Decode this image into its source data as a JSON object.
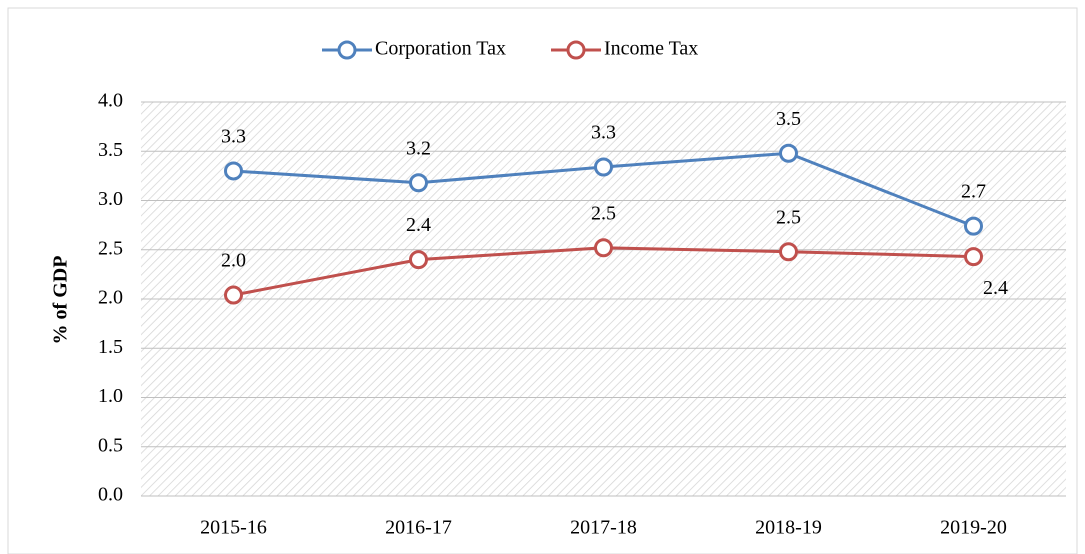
{
  "chart_data": {
    "type": "line",
    "y_label": "% of GDP",
    "categories": [
      "2015-16",
      "2016-17",
      "2017-18",
      "2018-19",
      "2019-20"
    ],
    "series": [
      {
        "name": "Corporation Tax",
        "color": "#4f81bd",
        "values": [
          3.3,
          3.18,
          3.34,
          3.48,
          2.74
        ],
        "value_labels": [
          "3.3",
          "3.2",
          "3.3",
          "3.5",
          "2.7"
        ]
      },
      {
        "name": "Income Tax",
        "color": "#c0504d",
        "values": [
          2.04,
          2.4,
          2.52,
          2.48,
          2.43
        ],
        "value_labels": [
          "2.0",
          "2.4",
          "2.5",
          "2.5",
          "2.4"
        ]
      }
    ],
    "ylim": [
      0,
      4
    ],
    "yticks": [
      {
        "value": 0,
        "label": "0.0"
      },
      {
        "value": 0.5,
        "label": "0.5"
      },
      {
        "value": 1,
        "label": "1.0"
      },
      {
        "value": 1.5,
        "label": "1.5"
      },
      {
        "value": 2,
        "label": "2.0"
      },
      {
        "value": 2.5,
        "label": "2.5"
      },
      {
        "value": 3,
        "label": "3.0"
      },
      {
        "value": 3.5,
        "label": "3.5"
      },
      {
        "value": 4,
        "label": "4.0"
      }
    ],
    "grid": true,
    "legend": "top"
  }
}
